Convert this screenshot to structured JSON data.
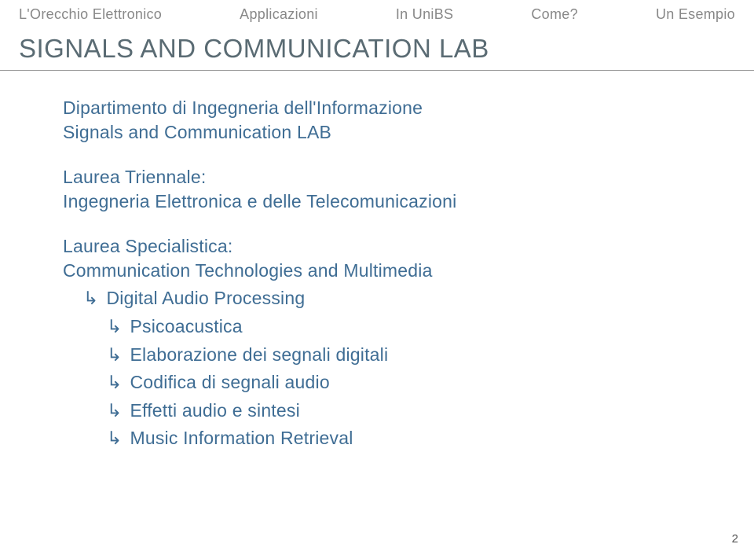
{
  "colors": {
    "nav_text": "#888888",
    "title_text": "#5a6b73",
    "body_text": "#3f6d94",
    "page_num": "#555555",
    "background": "#ffffff",
    "divider": "#999999"
  },
  "topnav": {
    "items": [
      "L'Orecchio Elettronico",
      "Applicazioni",
      "In UniBS",
      "Come?",
      "Un Esempio"
    ]
  },
  "section_title": "SIGNALS AND COMMUNICATION LAB",
  "dept": {
    "line1": "Dipartimento di Ingegneria dell'Informazione",
    "line2": "Signals and Communication LAB"
  },
  "triennale": {
    "heading": "Laurea Triennale:",
    "line": "Ingegneria Elettronica e delle Telecomunicazioni"
  },
  "specialistica": {
    "heading": "Laurea Specialistica:",
    "line": "Communication Technologies and Multimedia",
    "items": [
      {
        "level": 1,
        "text": "Digital Audio Processing"
      },
      {
        "level": 2,
        "text": "Psicoacustica"
      },
      {
        "level": 2,
        "text": "Elaborazione dei segnali digitali"
      },
      {
        "level": 2,
        "text": "Codifica di segnali audio"
      },
      {
        "level": 2,
        "text": "Effetti audio e sintesi"
      },
      {
        "level": 2,
        "text": "Music Information Retrieval"
      }
    ]
  },
  "arrow_glyph": "↳",
  "page_number": "2"
}
